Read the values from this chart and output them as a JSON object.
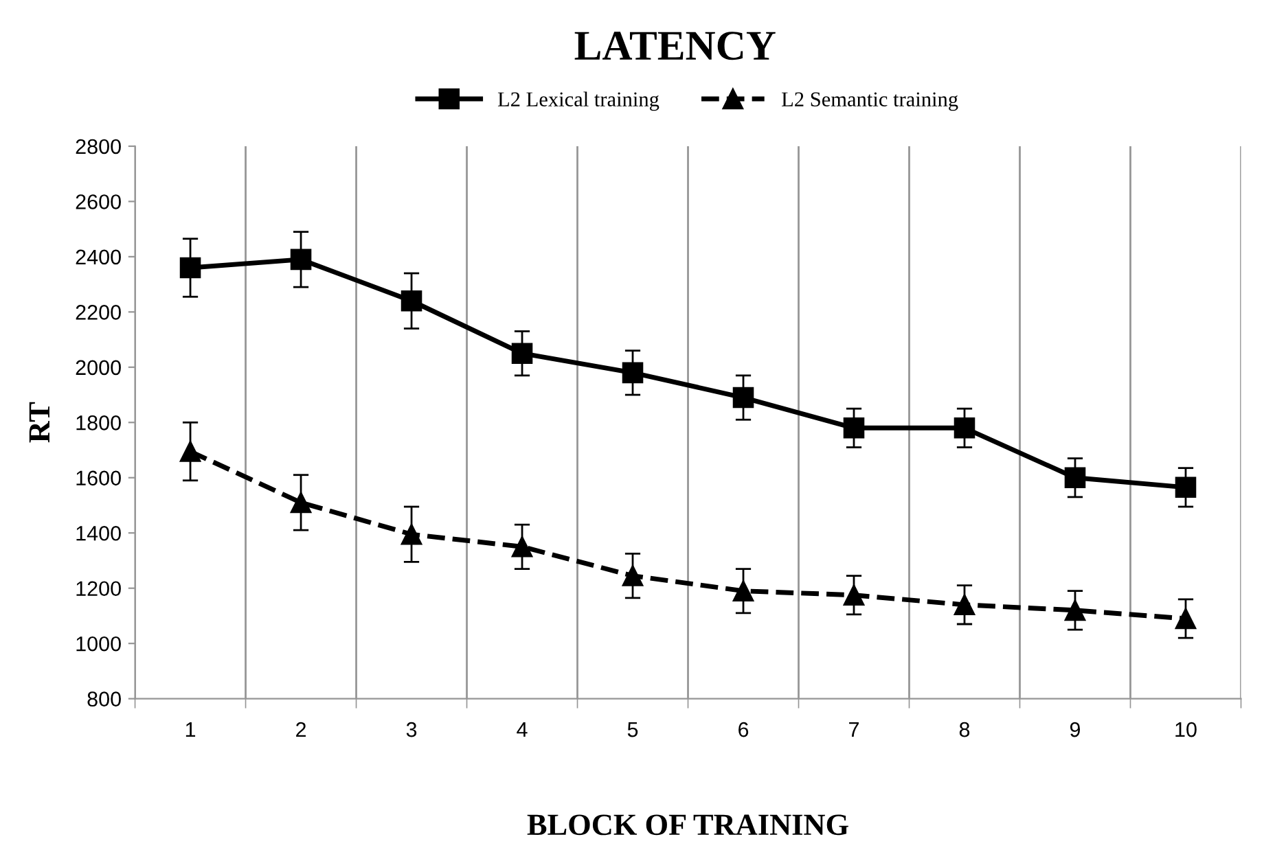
{
  "chart_data": {
    "type": "line",
    "title": "LATENCY",
    "xlabel": "BLOCK OF TRAINING",
    "ylabel": "RT",
    "categories": [
      "1",
      "2",
      "3",
      "4",
      "5",
      "6",
      "7",
      "8",
      "9",
      "10"
    ],
    "series": [
      {
        "name": "L2 Lexical training",
        "color": "#000000",
        "marker": "square",
        "line_style": "solid",
        "values": [
          2360,
          2390,
          2240,
          2050,
          1980,
          1890,
          1780,
          1780,
          1600,
          1565
        ],
        "errors": [
          105,
          100,
          100,
          80,
          80,
          80,
          70,
          70,
          70,
          70
        ]
      },
      {
        "name": "L2 Semantic training",
        "color": "#000000",
        "marker": "triangle",
        "line_style": "dashed",
        "values": [
          1695,
          1510,
          1395,
          1350,
          1245,
          1190,
          1175,
          1140,
          1120,
          1090
        ],
        "errors": [
          105,
          100,
          100,
          80,
          80,
          80,
          70,
          70,
          70,
          70
        ]
      }
    ],
    "ylim": [
      800,
      2800
    ],
    "yticks": [
      800,
      1000,
      1200,
      1400,
      1600,
      1800,
      2000,
      2200,
      2400,
      2600,
      2800
    ],
    "grid": "x",
    "legend": "top"
  }
}
